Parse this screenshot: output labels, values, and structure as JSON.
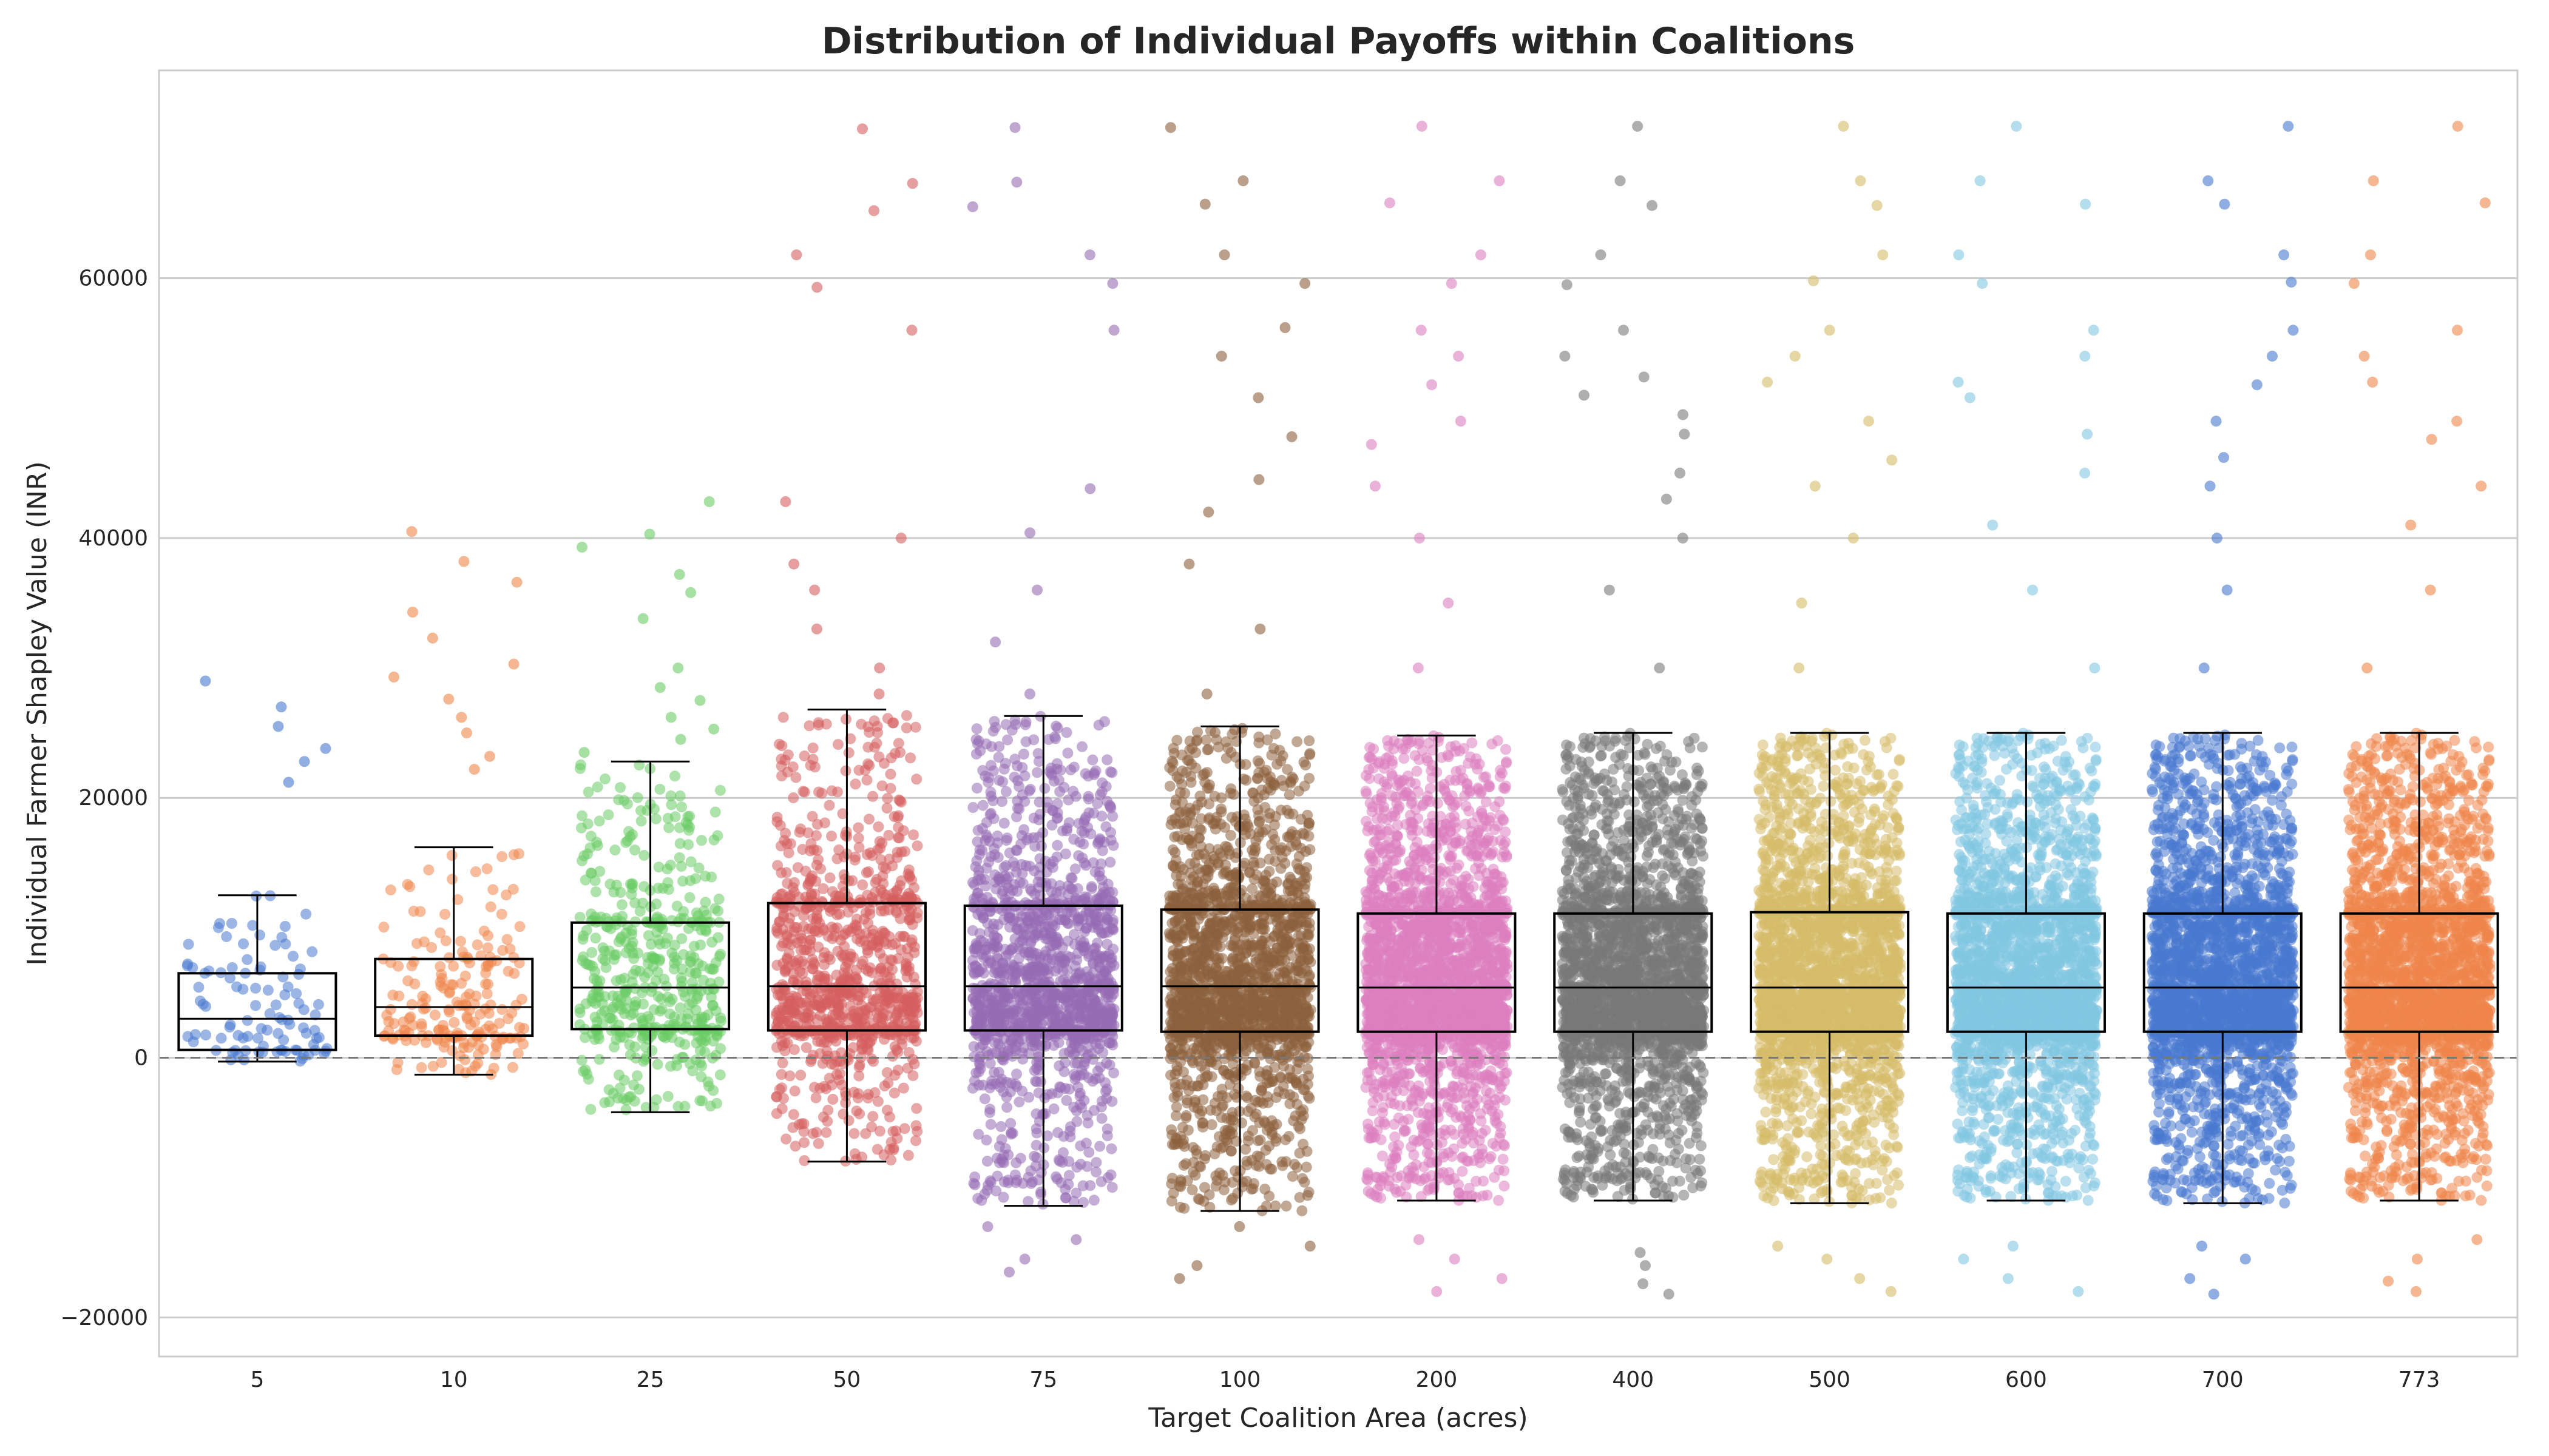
{
  "chart_data": {
    "type": "box-strip",
    "title": "Distribution of Individual Payoffs within Coalitions",
    "xlabel": "Target Coalition Area (acres)",
    "ylabel": "Individual Farmer Shapley Value (INR)",
    "ylim": [
      -23000,
      76000
    ],
    "yticks": [
      -20000,
      0,
      20000,
      40000,
      60000
    ],
    "ytick_labels": [
      "−20000",
      "0",
      "20000",
      "40000",
      "60000"
    ],
    "grid": true,
    "reference_line": {
      "y": 0,
      "style": "dashed"
    },
    "categories": [
      "5",
      "10",
      "25",
      "50",
      "75",
      "100",
      "200",
      "400",
      "500",
      "600",
      "700",
      "773"
    ],
    "colors": [
      "#4878d0",
      "#ee854a",
      "#6acc64",
      "#d65f5f",
      "#956cb4",
      "#8c613c",
      "#dc7ec0",
      "#797979",
      "#d5bb67",
      "#82c6e2",
      "#4878d0",
      "#ee854a"
    ],
    "series": [
      {
        "category": "5",
        "n": 100,
        "whisker_low": -300,
        "q1": 600,
        "median": 3000,
        "q3": 6500,
        "whisker_high": 12500,
        "outliers": [
          21200,
          22800,
          23800,
          25500,
          27000,
          29000
        ]
      },
      {
        "category": "10",
        "n": 200,
        "whisker_low": -1300,
        "q1": 1700,
        "median": 3900,
        "q3": 7600,
        "whisker_high": 16200,
        "outliers": [
          22200,
          23200,
          25000,
          26200,
          27600,
          29300,
          30300,
          32300,
          34300,
          36600,
          38200,
          40500
        ]
      },
      {
        "category": "25",
        "n": 500,
        "whisker_low": -4200,
        "q1": 2200,
        "median": 5400,
        "q3": 10400,
        "whisker_high": 22800,
        "outliers": [
          23500,
          24500,
          25300,
          26200,
          27500,
          28500,
          30000,
          33800,
          35800,
          37200,
          39300,
          40300,
          42800
        ]
      },
      {
        "category": "50",
        "n": 1000,
        "whisker_low": -8000,
        "q1": 2100,
        "median": 5500,
        "q3": 11900,
        "whisker_high": 26800,
        "outliers": [
          28000,
          30000,
          33000,
          36000,
          38000,
          40000,
          42800,
          56000,
          59300,
          61800,
          65200,
          67300,
          71500
        ]
      },
      {
        "category": "75",
        "n": 1500,
        "whisker_low": -11400,
        "q1": 2100,
        "median": 5500,
        "q3": 11700,
        "whisker_high": 26300,
        "outliers": [
          -16500,
          -15500,
          -14000,
          -13000,
          28000,
          32000,
          36000,
          40400,
          43800,
          56000,
          59600,
          61800,
          65500,
          67400,
          71600
        ]
      },
      {
        "category": "100",
        "n": 2000,
        "whisker_low": -11800,
        "q1": 2000,
        "median": 5500,
        "q3": 11400,
        "whisker_high": 25500,
        "outliers": [
          -17000,
          -16000,
          -14500,
          -13000,
          28000,
          33000,
          38000,
          42000,
          44500,
          47800,
          50800,
          54000,
          56200,
          59600,
          61800,
          65700,
          67500,
          71600
        ]
      },
      {
        "category": "200",
        "n": 3500,
        "whisker_low": -11000,
        "q1": 2000,
        "median": 5400,
        "q3": 11100,
        "whisker_high": 24800,
        "outliers": [
          -18000,
          -17000,
          -15500,
          -14000,
          30000,
          35000,
          40000,
          44000,
          47200,
          49000,
          51800,
          54000,
          56000,
          59600,
          61800,
          65800,
          67500,
          71700
        ]
      },
      {
        "category": "400",
        "n": 5500,
        "whisker_low": -11000,
        "q1": 2000,
        "median": 5400,
        "q3": 11100,
        "whisker_high": 25000,
        "outliers": [
          -18200,
          -17400,
          -16000,
          -15000,
          30000,
          36000,
          40000,
          43000,
          45000,
          48000,
          49500,
          51000,
          52400,
          54000,
          56000,
          59500,
          61800,
          65600,
          67500,
          71700
        ]
      },
      {
        "category": "500",
        "n": 6500,
        "whisker_low": -11200,
        "q1": 2000,
        "median": 5400,
        "q3": 11200,
        "whisker_high": 25000,
        "outliers": [
          -18000,
          -17000,
          -15500,
          -14500,
          30000,
          35000,
          40000,
          44000,
          46000,
          49000,
          52000,
          54000,
          56000,
          59800,
          61800,
          65600,
          67500,
          71700
        ]
      },
      {
        "category": "600",
        "n": 8000,
        "whisker_low": -11000,
        "q1": 2000,
        "median": 5400,
        "q3": 11100,
        "whisker_high": 25000,
        "outliers": [
          -18000,
          -17000,
          -15500,
          -14500,
          30000,
          36000,
          41000,
          45000,
          48000,
          50800,
          52000,
          54000,
          56000,
          59600,
          61800,
          65700,
          67500,
          71700
        ]
      },
      {
        "category": "700",
        "n": 9500,
        "whisker_low": -11200,
        "q1": 2000,
        "median": 5400,
        "q3": 11100,
        "whisker_high": 25000,
        "outliers": [
          -18200,
          -17000,
          -15500,
          -14500,
          30000,
          36000,
          40000,
          44000,
          46200,
          49000,
          51800,
          54000,
          56000,
          59700,
          61800,
          65700,
          67500,
          71700
        ]
      },
      {
        "category": "773",
        "n": 10500,
        "whisker_low": -11000,
        "q1": 2000,
        "median": 5400,
        "q3": 11100,
        "whisker_high": 25000,
        "outliers": [
          -18000,
          -17200,
          -15500,
          -14000,
          30000,
          36000,
          41000,
          44000,
          47600,
          49000,
          52000,
          54000,
          56000,
          59600,
          61800,
          65800,
          67500,
          71700
        ]
      }
    ]
  }
}
